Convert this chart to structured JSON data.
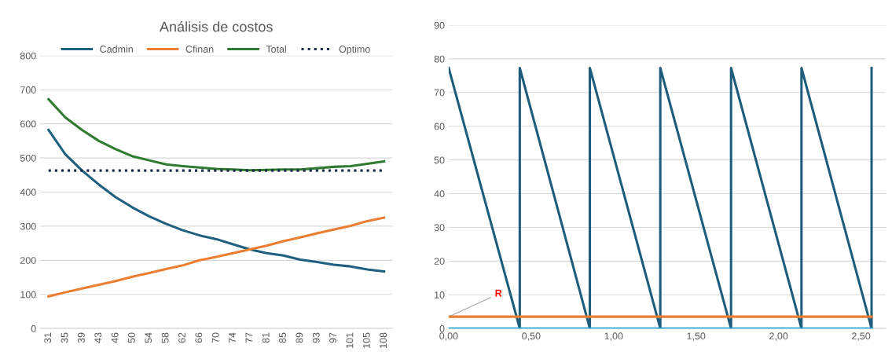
{
  "chart_data": [
    {
      "type": "line",
      "title": "Análisis de costos",
      "categories": [
        "31",
        "35",
        "39",
        "43",
        "46",
        "50",
        "54",
        "58",
        "62",
        "66",
        "70",
        "74",
        "77",
        "81",
        "85",
        "89",
        "93",
        "97",
        "101",
        "105",
        "108"
      ],
      "series": [
        {
          "name": "Cadmin",
          "color": "#1f5f7f",
          "values": [
            582,
            511,
            463,
            422,
            385,
            355,
            329,
            307,
            288,
            273,
            262,
            247,
            232,
            221,
            214,
            202,
            195,
            187,
            182,
            173,
            167
          ]
        },
        {
          "name": "Cfinan",
          "color": "#ed7d31",
          "values": [
            94,
            106,
            117,
            128,
            139,
            152,
            163,
            174,
            185,
            200,
            210,
            221,
            232,
            243,
            256,
            267,
            279,
            290,
            301,
            315,
            325
          ]
        },
        {
          "name": "Total",
          "color": "#2e7a2e",
          "values": [
            672,
            619,
            582,
            550,
            526,
            505,
            493,
            481,
            476,
            472,
            468,
            466,
            464,
            465,
            466,
            466,
            470,
            474,
            476,
            483,
            490
          ]
        },
        {
          "name": "Optimo",
          "color": "#1b2a4a",
          "line_style": "dotted",
          "values": [
            463,
            463,
            463,
            463,
            463,
            463,
            463,
            463,
            463,
            463,
            463,
            463,
            463,
            463,
            463,
            463,
            463,
            463,
            463,
            463,
            463
          ]
        }
      ],
      "ylim": [
        0,
        800
      ],
      "yticks": [
        0,
        100,
        200,
        300,
        400,
        500,
        600,
        700,
        800
      ],
      "grid": "y",
      "legend": "top",
      "line_style": "solid",
      "marker": "none"
    },
    {
      "type": "line",
      "series": [
        {
          "color": "#1d5c7a",
          "x": [
            0,
            0.431,
            0.431,
            0.856,
            0.856,
            1.283,
            1.283,
            1.712,
            1.712,
            2.139,
            2.139,
            2.564,
            2.564
          ],
          "values": [
            77.3,
            0,
            77.3,
            0,
            77.3,
            0,
            77.3,
            0,
            77.3,
            0,
            77.3,
            0,
            77.3
          ]
        },
        {
          "color": "#ed7d31",
          "x": [
            0,
            2.564
          ],
          "values": [
            3.5,
            3.5
          ]
        },
        {
          "color": "#1aa0d8",
          "x": [
            0,
            2.564
          ],
          "values": [
            0,
            0
          ]
        }
      ],
      "annotations": [
        {
          "text": "R",
          "x": 0,
          "y": 3.5
        }
      ],
      "xlim": [
        0,
        2.65
      ],
      "xticks": [
        {
          "value": 0,
          "label": "0,00"
        },
        {
          "value": 0.5,
          "label": "0,50"
        },
        {
          "value": 1,
          "label": "1,00"
        },
        {
          "value": 1.5,
          "label": "1,50"
        },
        {
          "value": 2,
          "label": "2,00"
        },
        {
          "value": 2.5,
          "label": "2,50"
        }
      ],
      "ylim": [
        0,
        90
      ],
      "yticks": [
        0,
        10,
        20,
        30,
        40,
        50,
        60,
        70,
        80,
        90
      ],
      "grid": "y",
      "line_style": "solid",
      "marker": "none"
    }
  ]
}
